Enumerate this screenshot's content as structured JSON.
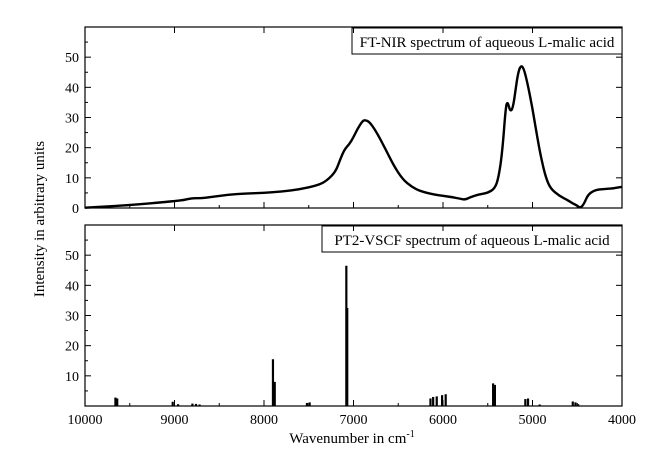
{
  "figure": {
    "ylabel": "Intensity in arbitrary units",
    "xlabel_main": "Wavenumber in cm",
    "xlabel_sup": "-1"
  },
  "chart_data": [
    {
      "type": "line",
      "title": "FT-NIR spectrum of aqueous L-malic acid",
      "xlabel": "Wavenumber in cm-1",
      "ylabel": "Intensity in arbitrary units",
      "xlim": [
        10000,
        4000
      ],
      "ylim": [
        0,
        60
      ],
      "x_reversed": true,
      "yticks": [
        0,
        10,
        20,
        30,
        40,
        50
      ],
      "xticks": [
        10000,
        9000,
        8000,
        7000,
        6000,
        5000,
        4000
      ],
      "grid": false,
      "legend": "none",
      "color": "#000000",
      "series": [
        {
          "points": [
            [
              10000,
              0.1
            ],
            [
              9700,
              0.6
            ],
            [
              9400,
              1.2
            ],
            [
              9100,
              2.0
            ],
            [
              9000,
              2.3
            ],
            [
              8900,
              2.6
            ],
            [
              8800,
              3.3
            ],
            [
              8700,
              3.2
            ],
            [
              8600,
              3.6
            ],
            [
              8400,
              4.4
            ],
            [
              8200,
              4.8
            ],
            [
              8000,
              5.0
            ],
            [
              7800,
              5.5
            ],
            [
              7600,
              6.2
            ],
            [
              7400,
              7.5
            ],
            [
              7300,
              9.0
            ],
            [
              7200,
              12.0
            ],
            [
              7150,
              16.0
            ],
            [
              7100,
              19.5
            ],
            [
              7050,
              21.0
            ],
            [
              7000,
              23.5
            ],
            [
              6950,
              26.5
            ],
            [
              6900,
              28.8
            ],
            [
              6870,
              29.2
            ],
            [
              6820,
              28.5
            ],
            [
              6750,
              25.5
            ],
            [
              6650,
              20.0
            ],
            [
              6550,
              14.0
            ],
            [
              6450,
              9.5
            ],
            [
              6350,
              7.0
            ],
            [
              6250,
              5.5
            ],
            [
              6100,
              4.5
            ],
            [
              6000,
              4.0
            ],
            [
              5900,
              3.6
            ],
            [
              5800,
              3.0
            ],
            [
              5750,
              2.8
            ],
            [
              5700,
              3.5
            ],
            [
              5600,
              4.5
            ],
            [
              5500,
              5.0
            ],
            [
              5420,
              6.5
            ],
            [
              5380,
              10.0
            ],
            [
              5340,
              18.0
            ],
            [
              5300,
              33.0
            ],
            [
              5280,
              35.5
            ],
            [
              5250,
              32.0
            ],
            [
              5220,
              33.0
            ],
            [
              5190,
              39.0
            ],
            [
              5160,
              45.0
            ],
            [
              5130,
              47.2
            ],
            [
              5100,
              46.5
            ],
            [
              5060,
              42.0
            ],
            [
              5000,
              33.0
            ],
            [
              4950,
              24.0
            ],
            [
              4900,
              16.0
            ],
            [
              4850,
              10.0
            ],
            [
              4800,
              6.5
            ],
            [
              4700,
              4.0
            ],
            [
              4600,
              2.5
            ],
            [
              4550,
              1.5
            ],
            [
              4500,
              0.8
            ],
            [
              4470,
              0.0
            ],
            [
              4430,
              1.0
            ],
            [
              4380,
              4.5
            ],
            [
              4300,
              6.0
            ],
            [
              4200,
              6.3
            ],
            [
              4100,
              6.5
            ],
            [
              4050,
              6.8
            ],
            [
              4000,
              7.0
            ]
          ]
        }
      ]
    },
    {
      "type": "bar",
      "title": "PT2-VSCF spectrum of aqueous L-malic acid",
      "xlabel": "Wavenumber in cm-1",
      "ylabel": "Intensity in arbitrary units",
      "xlim": [
        10000,
        4000
      ],
      "ylim": [
        0,
        60
      ],
      "x_reversed": true,
      "yticks": [
        10,
        20,
        30,
        40,
        50
      ],
      "xticks": [
        10000,
        9000,
        8000,
        7000,
        6000,
        5000,
        4000
      ],
      "xtick_labels": [
        "10000",
        "9000",
        "8000",
        "7000",
        "6000",
        "5000",
        "4000"
      ],
      "grid": false,
      "legend": "none",
      "color": "#000000",
      "lines": [
        {
          "x": 9660,
          "y": 2.8
        },
        {
          "x": 9640,
          "y": 2.5
        },
        {
          "x": 9020,
          "y": 1.4
        },
        {
          "x": 8960,
          "y": 0.6
        },
        {
          "x": 8800,
          "y": 0.8
        },
        {
          "x": 8760,
          "y": 0.7
        },
        {
          "x": 8720,
          "y": 0.5
        },
        {
          "x": 7900,
          "y": 15.5
        },
        {
          "x": 7880,
          "y": 8.0
        },
        {
          "x": 7520,
          "y": 1.0
        },
        {
          "x": 7490,
          "y": 1.2
        },
        {
          "x": 7080,
          "y": 46.5
        },
        {
          "x": 7070,
          "y": 32.5
        },
        {
          "x": 6140,
          "y": 2.5
        },
        {
          "x": 6110,
          "y": 3.0
        },
        {
          "x": 6070,
          "y": 3.2
        },
        {
          "x": 6010,
          "y": 3.6
        },
        {
          "x": 5970,
          "y": 3.9
        },
        {
          "x": 5440,
          "y": 7.5
        },
        {
          "x": 5420,
          "y": 7.0
        },
        {
          "x": 5080,
          "y": 2.3
        },
        {
          "x": 5050,
          "y": 2.5
        },
        {
          "x": 4920,
          "y": 0.5
        },
        {
          "x": 4550,
          "y": 1.5
        },
        {
          "x": 4520,
          "y": 1.2
        },
        {
          "x": 4490,
          "y": 0.6
        }
      ]
    }
  ]
}
